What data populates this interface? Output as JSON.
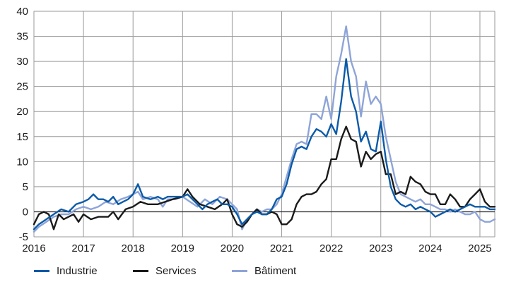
{
  "chart_data": {
    "type": "line",
    "title": "",
    "xlabel": "",
    "ylabel": "",
    "ylim": [
      -5,
      40
    ],
    "xlim": [
      2016.0,
      2025.3
    ],
    "yticks": [
      "-5",
      "0",
      "5",
      "10",
      "15",
      "20",
      "25",
      "30",
      "35",
      "40"
    ],
    "xticks": [
      "2016",
      "2017",
      "2018",
      "2019",
      "2020",
      "2021",
      "2022",
      "2023",
      "2024",
      "2025"
    ],
    "grid": true,
    "legend_position": "bottom",
    "series": [
      {
        "name": "Industrie",
        "color": "#0b5aa8",
        "points": [
          [
            2016.0,
            -3.5
          ],
          [
            2016.1,
            -2.5
          ],
          [
            2016.25,
            -1.5
          ],
          [
            2016.4,
            -0.5
          ],
          [
            2016.55,
            0.5
          ],
          [
            2016.7,
            0.0
          ],
          [
            2016.85,
            1.5
          ],
          [
            2017.0,
            2.0
          ],
          [
            2017.1,
            2.5
          ],
          [
            2017.2,
            3.5
          ],
          [
            2017.3,
            2.5
          ],
          [
            2017.4,
            2.5
          ],
          [
            2017.5,
            2.0
          ],
          [
            2017.6,
            3.0
          ],
          [
            2017.7,
            1.5
          ],
          [
            2017.8,
            2.0
          ],
          [
            2017.9,
            2.5
          ],
          [
            2018.0,
            3.5
          ],
          [
            2018.1,
            5.5
          ],
          [
            2018.2,
            3.0
          ],
          [
            2018.35,
            2.5
          ],
          [
            2018.5,
            3.0
          ],
          [
            2018.6,
            2.5
          ],
          [
            2018.7,
            3.0
          ],
          [
            2018.85,
            3.0
          ],
          [
            2019.0,
            3.0
          ],
          [
            2019.1,
            3.5
          ],
          [
            2019.2,
            2.5
          ],
          [
            2019.3,
            1.5
          ],
          [
            2019.4,
            0.5
          ],
          [
            2019.5,
            1.5
          ],
          [
            2019.6,
            2.0
          ],
          [
            2019.7,
            2.5
          ],
          [
            2019.8,
            1.5
          ],
          [
            2019.9,
            1.5
          ],
          [
            2020.0,
            1.0
          ],
          [
            2020.1,
            -0.5
          ],
          [
            2020.2,
            -2.5
          ],
          [
            2020.3,
            -1.5
          ],
          [
            2020.4,
            -0.5
          ],
          [
            2020.5,
            0.0
          ],
          [
            2020.6,
            -0.5
          ],
          [
            2020.7,
            -0.5
          ],
          [
            2020.8,
            0.5
          ],
          [
            2020.9,
            2.5
          ],
          [
            2021.0,
            3.0
          ],
          [
            2021.1,
            5.5
          ],
          [
            2021.2,
            9.5
          ],
          [
            2021.3,
            12.5
          ],
          [
            2021.4,
            13.0
          ],
          [
            2021.5,
            12.5
          ],
          [
            2021.6,
            15.0
          ],
          [
            2021.7,
            16.5
          ],
          [
            2021.8,
            16.0
          ],
          [
            2021.9,
            15.0
          ],
          [
            2022.0,
            17.5
          ],
          [
            2022.1,
            15.5
          ],
          [
            2022.2,
            22.0
          ],
          [
            2022.3,
            30.5
          ],
          [
            2022.4,
            23.0
          ],
          [
            2022.5,
            20.0
          ],
          [
            2022.6,
            14.0
          ],
          [
            2022.7,
            16.0
          ],
          [
            2022.8,
            12.5
          ],
          [
            2022.9,
            12.0
          ],
          [
            2023.0,
            18.0
          ],
          [
            2023.1,
            10.5
          ],
          [
            2023.2,
            5.0
          ],
          [
            2023.3,
            2.5
          ],
          [
            2023.4,
            1.5
          ],
          [
            2023.5,
            1.0
          ],
          [
            2023.6,
            1.5
          ],
          [
            2023.7,
            0.5
          ],
          [
            2023.8,
            1.0
          ],
          [
            2023.9,
            0.5
          ],
          [
            2024.0,
            0.0
          ],
          [
            2024.1,
            -1.0
          ],
          [
            2024.2,
            -0.5
          ],
          [
            2024.3,
            0.0
          ],
          [
            2024.4,
            0.5
          ],
          [
            2024.5,
            0.0
          ],
          [
            2024.6,
            0.5
          ],
          [
            2024.7,
            1.0
          ],
          [
            2024.8,
            1.5
          ],
          [
            2024.9,
            1.0
          ],
          [
            2025.0,
            1.0
          ],
          [
            2025.1,
            1.0
          ],
          [
            2025.2,
            0.5
          ],
          [
            2025.3,
            0.5
          ]
        ]
      },
      {
        "name": "Services",
        "color": "#1a1a1a",
        "points": [
          [
            2016.0,
            -2.5
          ],
          [
            2016.1,
            -0.5
          ],
          [
            2016.2,
            0.0
          ],
          [
            2016.3,
            -0.5
          ],
          [
            2016.4,
            -3.5
          ],
          [
            2016.5,
            -0.5
          ],
          [
            2016.6,
            -1.5
          ],
          [
            2016.7,
            -1.0
          ],
          [
            2016.8,
            -0.5
          ],
          [
            2016.9,
            -2.0
          ],
          [
            2017.0,
            -0.5
          ],
          [
            2017.15,
            -1.5
          ],
          [
            2017.3,
            -1.0
          ],
          [
            2017.5,
            -1.0
          ],
          [
            2017.6,
            0.0
          ],
          [
            2017.7,
            -1.5
          ],
          [
            2017.85,
            0.5
          ],
          [
            2018.0,
            1.0
          ],
          [
            2018.15,
            2.0
          ],
          [
            2018.3,
            1.5
          ],
          [
            2018.5,
            1.5
          ],
          [
            2018.65,
            2.0
          ],
          [
            2018.8,
            2.5
          ],
          [
            2019.0,
            3.0
          ],
          [
            2019.1,
            4.5
          ],
          [
            2019.2,
            3.0
          ],
          [
            2019.35,
            1.5
          ],
          [
            2019.5,
            1.0
          ],
          [
            2019.65,
            0.5
          ],
          [
            2019.8,
            1.5
          ],
          [
            2019.9,
            2.5
          ],
          [
            2020.0,
            -0.5
          ],
          [
            2020.1,
            -2.5
          ],
          [
            2020.2,
            -3.0
          ],
          [
            2020.3,
            -2.0
          ],
          [
            2020.4,
            -0.5
          ],
          [
            2020.5,
            0.5
          ],
          [
            2020.6,
            -0.5
          ],
          [
            2020.7,
            -0.5
          ],
          [
            2020.8,
            0.0
          ],
          [
            2020.9,
            -0.5
          ],
          [
            2021.0,
            -2.5
          ],
          [
            2021.1,
            -2.5
          ],
          [
            2021.2,
            -1.5
          ],
          [
            2021.3,
            1.5
          ],
          [
            2021.4,
            3.0
          ],
          [
            2021.5,
            3.5
          ],
          [
            2021.6,
            3.5
          ],
          [
            2021.7,
            4.0
          ],
          [
            2021.8,
            5.5
          ],
          [
            2021.9,
            6.5
          ],
          [
            2022.0,
            10.5
          ],
          [
            2022.1,
            10.5
          ],
          [
            2022.2,
            14.5
          ],
          [
            2022.3,
            17.0
          ],
          [
            2022.4,
            14.5
          ],
          [
            2022.5,
            14.0
          ],
          [
            2022.6,
            9.0
          ],
          [
            2022.7,
            12.0
          ],
          [
            2022.8,
            10.5
          ],
          [
            2022.9,
            11.5
          ],
          [
            2023.0,
            12.0
          ],
          [
            2023.1,
            7.5
          ],
          [
            2023.2,
            7.5
          ],
          [
            2023.3,
            3.5
          ],
          [
            2023.4,
            4.0
          ],
          [
            2023.5,
            3.5
          ],
          [
            2023.6,
            7.0
          ],
          [
            2023.7,
            6.0
          ],
          [
            2023.8,
            5.5
          ],
          [
            2023.9,
            4.0
          ],
          [
            2024.0,
            3.5
          ],
          [
            2024.1,
            3.5
          ],
          [
            2024.2,
            1.5
          ],
          [
            2024.3,
            1.5
          ],
          [
            2024.4,
            3.5
          ],
          [
            2024.5,
            2.5
          ],
          [
            2024.6,
            1.0
          ],
          [
            2024.7,
            1.0
          ],
          [
            2024.8,
            2.5
          ],
          [
            2024.9,
            3.5
          ],
          [
            2025.0,
            4.5
          ],
          [
            2025.1,
            2.0
          ],
          [
            2025.2,
            1.0
          ],
          [
            2025.3,
            1.0
          ]
        ]
      },
      {
        "name": "Bâtiment",
        "color": "#8ea4d8",
        "points": [
          [
            2016.0,
            -4.0
          ],
          [
            2016.1,
            -3.0
          ],
          [
            2016.25,
            -2.0
          ],
          [
            2016.4,
            -1.0
          ],
          [
            2016.55,
            -0.5
          ],
          [
            2016.7,
            -0.5
          ],
          [
            2016.85,
            0.5
          ],
          [
            2017.0,
            1.0
          ],
          [
            2017.15,
            0.5
          ],
          [
            2017.3,
            1.0
          ],
          [
            2017.45,
            2.0
          ],
          [
            2017.6,
            1.5
          ],
          [
            2017.75,
            2.5
          ],
          [
            2017.9,
            3.0
          ],
          [
            2018.0,
            3.5
          ],
          [
            2018.1,
            4.0
          ],
          [
            2018.2,
            2.5
          ],
          [
            2018.35,
            3.0
          ],
          [
            2018.5,
            2.5
          ],
          [
            2018.6,
            1.0
          ],
          [
            2018.7,
            2.5
          ],
          [
            2018.85,
            2.5
          ],
          [
            2019.0,
            3.0
          ],
          [
            2019.15,
            2.0
          ],
          [
            2019.3,
            1.0
          ],
          [
            2019.45,
            2.5
          ],
          [
            2019.6,
            1.5
          ],
          [
            2019.75,
            3.0
          ],
          [
            2019.9,
            2.5
          ],
          [
            2020.0,
            1.5
          ],
          [
            2020.1,
            0.5
          ],
          [
            2020.2,
            -3.5
          ],
          [
            2020.3,
            -1.5
          ],
          [
            2020.4,
            -0.5
          ],
          [
            2020.5,
            0.5
          ],
          [
            2020.6,
            0.0
          ],
          [
            2020.7,
            0.5
          ],
          [
            2020.8,
            0.5
          ],
          [
            2020.9,
            1.5
          ],
          [
            2021.0,
            3.5
          ],
          [
            2021.1,
            7.0
          ],
          [
            2021.2,
            10.5
          ],
          [
            2021.3,
            13.5
          ],
          [
            2021.4,
            14.0
          ],
          [
            2021.5,
            13.5
          ],
          [
            2021.6,
            19.5
          ],
          [
            2021.7,
            19.5
          ],
          [
            2021.8,
            18.5
          ],
          [
            2021.9,
            23.0
          ],
          [
            2022.0,
            18.5
          ],
          [
            2022.1,
            27.0
          ],
          [
            2022.2,
            31.5
          ],
          [
            2022.3,
            37.0
          ],
          [
            2022.4,
            30.0
          ],
          [
            2022.5,
            27.0
          ],
          [
            2022.6,
            19.0
          ],
          [
            2022.7,
            26.0
          ],
          [
            2022.8,
            21.5
          ],
          [
            2022.9,
            23.0
          ],
          [
            2023.0,
            21.5
          ],
          [
            2023.1,
            15.0
          ],
          [
            2023.2,
            10.5
          ],
          [
            2023.3,
            6.0
          ],
          [
            2023.4,
            3.5
          ],
          [
            2023.5,
            3.0
          ],
          [
            2023.6,
            2.5
          ],
          [
            2023.7,
            2.0
          ],
          [
            2023.8,
            2.5
          ],
          [
            2023.9,
            1.5
          ],
          [
            2024.0,
            1.5
          ],
          [
            2024.1,
            1.0
          ],
          [
            2024.2,
            0.5
          ],
          [
            2024.3,
            0.5
          ],
          [
            2024.4,
            0.0
          ],
          [
            2024.5,
            0.5
          ],
          [
            2024.6,
            0.0
          ],
          [
            2024.7,
            -0.5
          ],
          [
            2024.8,
            -0.5
          ],
          [
            2024.9,
            0.0
          ],
          [
            2025.0,
            -1.5
          ],
          [
            2025.1,
            -2.0
          ],
          [
            2025.2,
            -2.0
          ],
          [
            2025.3,
            -1.5
          ]
        ]
      }
    ]
  },
  "legend": {
    "items": [
      {
        "label": "Industrie",
        "color": "#0b5aa8"
      },
      {
        "label": "Services",
        "color": "#1a1a1a"
      },
      {
        "label": "Bâtiment",
        "color": "#8ea4d8"
      }
    ]
  }
}
